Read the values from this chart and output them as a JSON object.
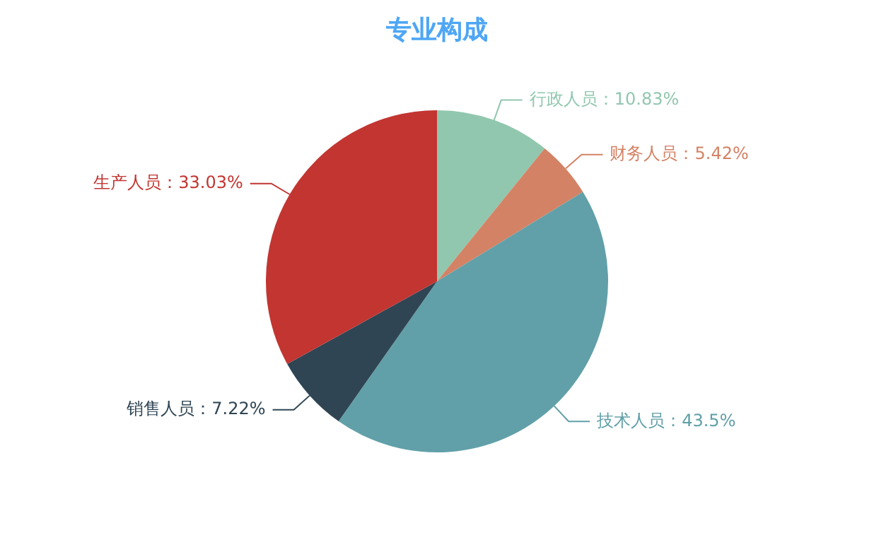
{
  "chart_data": {
    "type": "pie",
    "title": "专业构成",
    "categories": [
      "行政人员",
      "财务人员",
      "技术人员",
      "销售人员",
      "生产人员"
    ],
    "values": [
      10.83,
      5.42,
      43.5,
      7.22,
      33.03
    ],
    "colors": [
      "#91c7ae",
      "#d48265",
      "#61a0a8",
      "#2f4554",
      "#c23531"
    ],
    "value_labels": [
      "：10.83%",
      "：5.42%",
      "：43.5%",
      "：7.22%",
      "：33.03%"
    ],
    "legend": false
  }
}
